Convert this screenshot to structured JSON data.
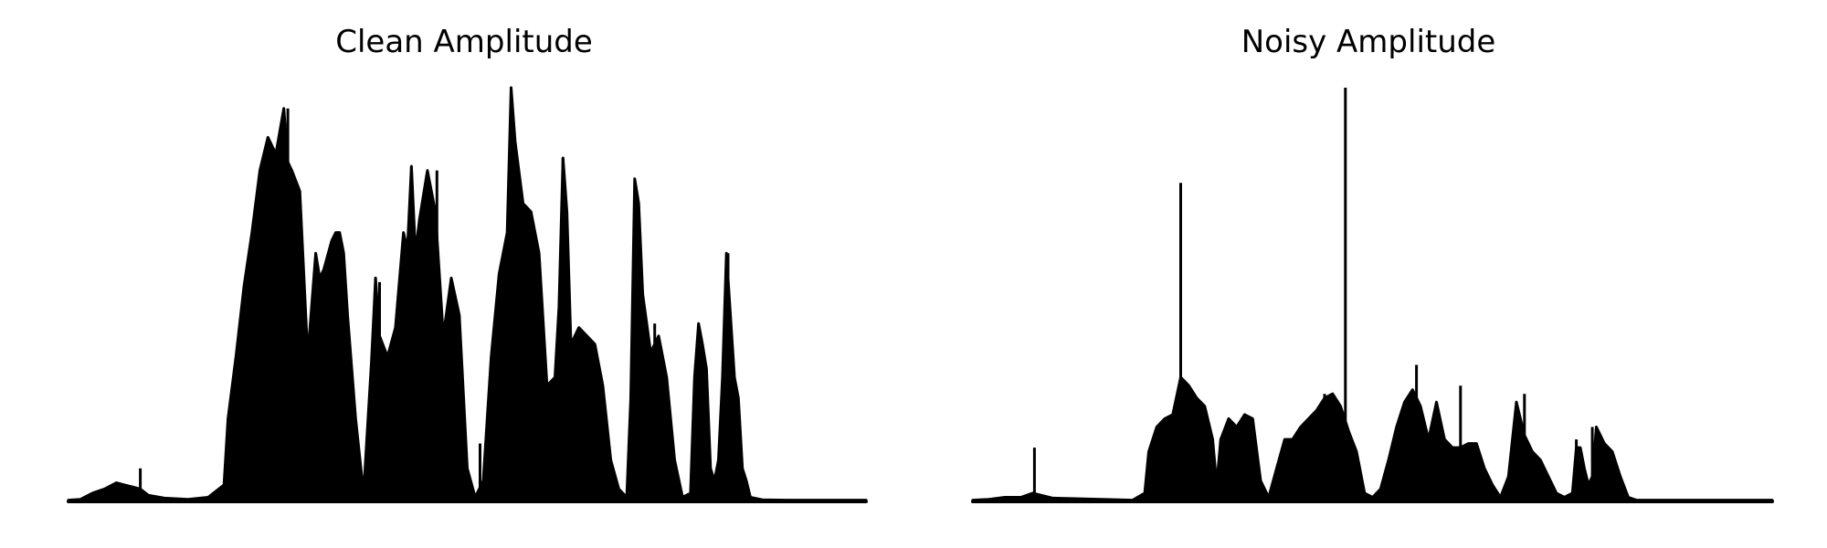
{
  "colors": {
    "waveform": "#000000",
    "background": "#ffffff"
  },
  "chart_data": [
    {
      "type": "area",
      "title": "Clean Amplitude",
      "axes": "off",
      "grid": false,
      "xlim": [
        0,
        1
      ],
      "ylim": [
        0,
        1
      ],
      "envelope": [
        [
          0.0,
          0.003
        ],
        [
          0.015,
          0.005
        ],
        [
          0.03,
          0.02
        ],
        [
          0.045,
          0.03
        ],
        [
          0.06,
          0.045
        ],
        [
          0.07,
          0.04
        ],
        [
          0.08,
          0.035
        ],
        [
          0.09,
          0.03
        ],
        [
          0.1,
          0.015
        ],
        [
          0.12,
          0.008
        ],
        [
          0.15,
          0.005
        ],
        [
          0.175,
          0.01
        ],
        [
          0.195,
          0.04
        ],
        [
          0.2,
          0.2
        ],
        [
          0.21,
          0.35
        ],
        [
          0.22,
          0.52
        ],
        [
          0.23,
          0.65
        ],
        [
          0.24,
          0.8
        ],
        [
          0.25,
          0.88
        ],
        [
          0.26,
          0.84
        ],
        [
          0.27,
          0.95
        ],
        [
          0.275,
          0.82
        ],
        [
          0.28,
          0.8
        ],
        [
          0.29,
          0.75
        ],
        [
          0.3,
          0.35
        ],
        [
          0.31,
          0.6
        ],
        [
          0.315,
          0.54
        ],
        [
          0.32,
          0.56
        ],
        [
          0.33,
          0.63
        ],
        [
          0.335,
          0.65
        ],
        [
          0.34,
          0.65
        ],
        [
          0.345,
          0.6
        ],
        [
          0.35,
          0.45
        ],
        [
          0.36,
          0.2
        ],
        [
          0.37,
          0.02
        ],
        [
          0.38,
          0.34
        ],
        [
          0.385,
          0.54
        ],
        [
          0.39,
          0.4
        ],
        [
          0.4,
          0.35
        ],
        [
          0.41,
          0.42
        ],
        [
          0.42,
          0.65
        ],
        [
          0.425,
          0.61
        ],
        [
          0.43,
          0.81
        ],
        [
          0.435,
          0.6
        ],
        [
          0.44,
          0.68
        ],
        [
          0.45,
          0.8
        ],
        [
          0.46,
          0.7
        ],
        [
          0.47,
          0.4
        ],
        [
          0.48,
          0.54
        ],
        [
          0.49,
          0.45
        ],
        [
          0.5,
          0.08
        ],
        [
          0.51,
          0.01
        ],
        [
          0.52,
          0.05
        ],
        [
          0.53,
          0.35
        ],
        [
          0.54,
          0.55
        ],
        [
          0.55,
          0.65
        ],
        [
          0.555,
          1.0
        ],
        [
          0.56,
          0.87
        ],
        [
          0.57,
          0.72
        ],
        [
          0.58,
          0.7
        ],
        [
          0.59,
          0.6
        ],
        [
          0.6,
          0.28
        ],
        [
          0.61,
          0.3
        ],
        [
          0.615,
          0.47
        ],
        [
          0.62,
          0.83
        ],
        [
          0.625,
          0.7
        ],
        [
          0.63,
          0.38
        ],
        [
          0.64,
          0.42
        ],
        [
          0.65,
          0.4
        ],
        [
          0.66,
          0.38
        ],
        [
          0.67,
          0.28
        ],
        [
          0.68,
          0.1
        ],
        [
          0.69,
          0.03
        ],
        [
          0.7,
          0.01
        ],
        [
          0.705,
          0.25
        ],
        [
          0.71,
          0.78
        ],
        [
          0.715,
          0.72
        ],
        [
          0.72,
          0.5
        ],
        [
          0.73,
          0.36
        ],
        [
          0.74,
          0.4
        ],
        [
          0.75,
          0.3
        ],
        [
          0.76,
          0.1
        ],
        [
          0.77,
          0.01
        ],
        [
          0.78,
          0.02
        ],
        [
          0.785,
          0.3
        ],
        [
          0.79,
          0.43
        ],
        [
          0.795,
          0.38
        ],
        [
          0.8,
          0.32
        ],
        [
          0.805,
          0.08
        ],
        [
          0.81,
          0.05
        ],
        [
          0.815,
          0.1
        ],
        [
          0.82,
          0.3
        ],
        [
          0.825,
          0.6
        ],
        [
          0.83,
          0.45
        ],
        [
          0.835,
          0.3
        ],
        [
          0.84,
          0.25
        ],
        [
          0.845,
          0.08
        ],
        [
          0.85,
          0.05
        ],
        [
          0.855,
          0.01
        ],
        [
          0.87,
          0.004
        ],
        [
          0.9,
          0.003
        ],
        [
          0.95,
          0.003
        ],
        [
          1.0,
          0.003
        ]
      ],
      "spikes": [
        [
          0.09,
          0.08
        ],
        [
          0.177,
          0.01
        ],
        [
          0.275,
          0.95
        ],
        [
          0.39,
          0.53
        ],
        [
          0.43,
          0.81
        ],
        [
          0.462,
          0.8
        ],
        [
          0.516,
          0.14
        ],
        [
          0.555,
          1.0
        ],
        [
          0.62,
          0.83
        ],
        [
          0.735,
          0.43
        ],
        [
          0.818,
          0.18
        ],
        [
          0.827,
          0.6
        ],
        [
          0.842,
          0.08
        ]
      ]
    },
    {
      "type": "area",
      "title": "Noisy Amplitude",
      "axes": "off",
      "grid": false,
      "xlim": [
        0,
        1
      ],
      "ylim": [
        0,
        1
      ],
      "envelope": [
        [
          0.0,
          0.003
        ],
        [
          0.02,
          0.005
        ],
        [
          0.04,
          0.01
        ],
        [
          0.06,
          0.01
        ],
        [
          0.075,
          0.02
        ],
        [
          0.085,
          0.015
        ],
        [
          0.1,
          0.008
        ],
        [
          0.14,
          0.006
        ],
        [
          0.2,
          0.003
        ],
        [
          0.215,
          0.02
        ],
        [
          0.22,
          0.12
        ],
        [
          0.23,
          0.18
        ],
        [
          0.24,
          0.2
        ],
        [
          0.25,
          0.21
        ],
        [
          0.26,
          0.3
        ],
        [
          0.27,
          0.28
        ],
        [
          0.28,
          0.25
        ],
        [
          0.29,
          0.23
        ],
        [
          0.3,
          0.15
        ],
        [
          0.305,
          0.04
        ],
        [
          0.31,
          0.15
        ],
        [
          0.32,
          0.2
        ],
        [
          0.33,
          0.18
        ],
        [
          0.34,
          0.21
        ],
        [
          0.35,
          0.2
        ],
        [
          0.36,
          0.05
        ],
        [
          0.37,
          0.01
        ],
        [
          0.38,
          0.08
        ],
        [
          0.39,
          0.15
        ],
        [
          0.4,
          0.15
        ],
        [
          0.41,
          0.18
        ],
        [
          0.42,
          0.2
        ],
        [
          0.43,
          0.22
        ],
        [
          0.44,
          0.25
        ],
        [
          0.45,
          0.26
        ],
        [
          0.46,
          0.23
        ],
        [
          0.47,
          0.17
        ],
        [
          0.48,
          0.12
        ],
        [
          0.49,
          0.02
        ],
        [
          0.5,
          0.01
        ],
        [
          0.51,
          0.03
        ],
        [
          0.52,
          0.1
        ],
        [
          0.53,
          0.18
        ],
        [
          0.54,
          0.24
        ],
        [
          0.55,
          0.27
        ],
        [
          0.56,
          0.23
        ],
        [
          0.57,
          0.15
        ],
        [
          0.58,
          0.24
        ],
        [
          0.59,
          0.15
        ],
        [
          0.6,
          0.13
        ],
        [
          0.61,
          0.13
        ],
        [
          0.62,
          0.14
        ],
        [
          0.63,
          0.14
        ],
        [
          0.64,
          0.08
        ],
        [
          0.65,
          0.04
        ],
        [
          0.66,
          0.01
        ],
        [
          0.67,
          0.06
        ],
        [
          0.68,
          0.24
        ],
        [
          0.69,
          0.16
        ],
        [
          0.7,
          0.12
        ],
        [
          0.71,
          0.1
        ],
        [
          0.72,
          0.06
        ],
        [
          0.73,
          0.02
        ],
        [
          0.74,
          0.01
        ],
        [
          0.75,
          0.02
        ],
        [
          0.755,
          0.13
        ],
        [
          0.76,
          0.13
        ],
        [
          0.765,
          0.08
        ],
        [
          0.77,
          0.04
        ],
        [
          0.775,
          0.06
        ],
        [
          0.78,
          0.18
        ],
        [
          0.79,
          0.14
        ],
        [
          0.8,
          0.12
        ],
        [
          0.81,
          0.06
        ],
        [
          0.82,
          0.01
        ],
        [
          0.83,
          0.003
        ],
        [
          0.88,
          0.003
        ],
        [
          0.95,
          0.003
        ],
        [
          1.0,
          0.003
        ]
      ],
      "spikes": [
        [
          0.077,
          0.13
        ],
        [
          0.26,
          0.77
        ],
        [
          0.44,
          0.26
        ],
        [
          0.466,
          1.0
        ],
        [
          0.53,
          0.05
        ],
        [
          0.555,
          0.33
        ],
        [
          0.61,
          0.28
        ],
        [
          0.67,
          0.04
        ],
        [
          0.69,
          0.26
        ],
        [
          0.755,
          0.15
        ],
        [
          0.775,
          0.18
        ],
        [
          0.79,
          0.08
        ]
      ]
    }
  ]
}
